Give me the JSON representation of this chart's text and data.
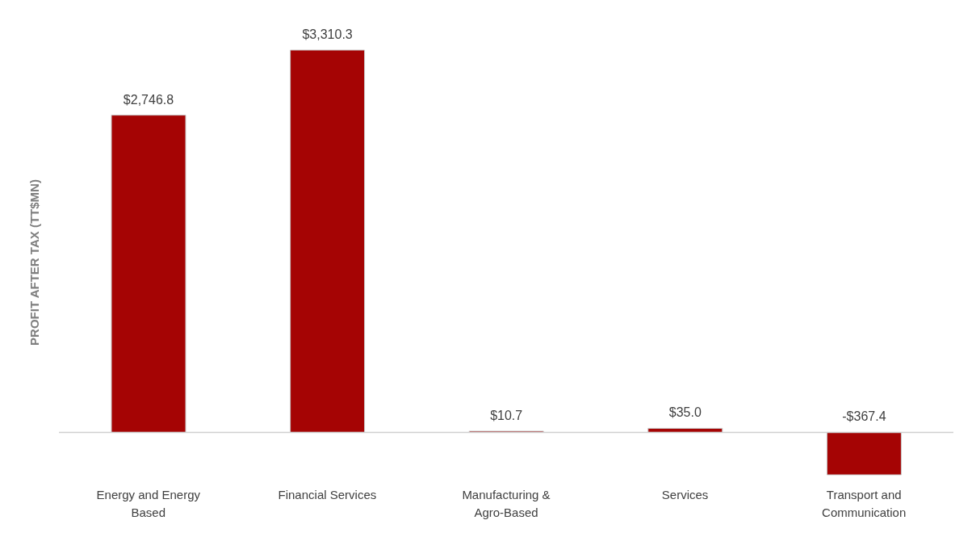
{
  "chart_data": {
    "type": "bar",
    "ylabel": "PROFIT AFTER TAX (TT$MN)",
    "categories": [
      "Energy and Energy Based",
      "Financial Services",
      "Manufacturing & Agro-Based",
      "Services",
      "Transport and Communication"
    ],
    "values": [
      2746.8,
      3310.3,
      10.7,
      35.0,
      -367.4
    ],
    "value_labels": [
      "$2,746.8",
      "$3,310.3",
      "$10.7",
      "$35.0",
      "-$367.4"
    ],
    "color": "#a50404",
    "relative": false
  }
}
